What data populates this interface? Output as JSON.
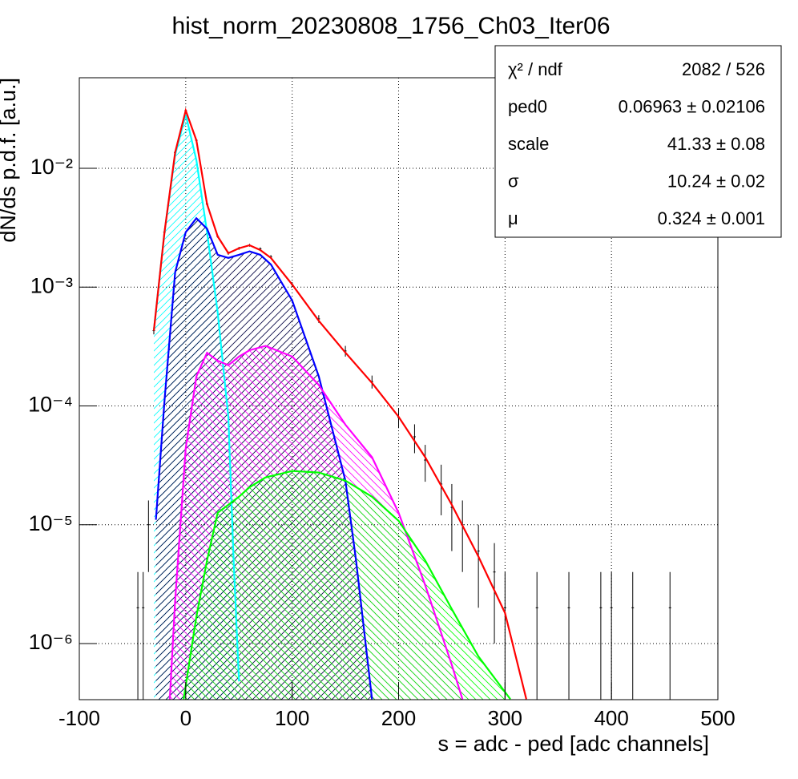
{
  "chart_data": {
    "type": "line",
    "title": "hist_norm_20230808_1756_Ch03_Iter06",
    "x_label": "s = adc - ped [adc channels]",
    "y_label": "dN/ds p.d.f. [a.u.]",
    "log_y": true,
    "grid": true,
    "xlim": [
      -100,
      500
    ],
    "xticks": [
      -100,
      0,
      100,
      200,
      300,
      400,
      500
    ],
    "ylim": [
      3.37e-07,
      0.0578
    ],
    "yticks": [
      {
        "value": 1e-06,
        "label": "10⁻⁶"
      },
      {
        "value": 1e-05,
        "label": "10⁻⁵"
      },
      {
        "value": 0.0001,
        "label": "10⁻⁴"
      },
      {
        "value": 0.001,
        "label": "10⁻³"
      },
      {
        "value": 0.01,
        "label": "10⁻²"
      }
    ],
    "histogram": {
      "color": "#000000",
      "x": [
        -45,
        -40,
        -35,
        -30,
        -20,
        -10,
        0,
        10,
        20,
        30,
        40,
        50,
        60,
        70,
        80,
        100,
        125,
        150,
        175,
        200,
        215,
        225,
        240,
        250,
        260,
        275,
        290,
        300,
        330,
        360,
        390,
        400,
        420,
        455
      ],
      "values": [
        2e-06,
        2e-06,
        1e-05,
        0.00043,
        0.0029,
        0.0136,
        0.0306,
        0.0172,
        0.005,
        0.00267,
        0.00193,
        0.00212,
        0.00225,
        0.0021,
        0.0018,
        0.00105,
        0.00054,
        0.00029,
        0.00016,
        8e-05,
        5.5e-05,
        3.5e-05,
        2.2e-05,
        1.4e-05,
        1e-05,
        6e-06,
        4e-06,
        2e-06,
        2e-06,
        2e-06,
        2e-06,
        2e-06,
        2e-06,
        2e-06
      ],
      "errors": [
        2e-06,
        2e-06,
        6e-06,
        3e-05,
        8e-05,
        0.0002,
        0.0003,
        0.0002,
        0.0001,
        7e-05,
        6e-05,
        6e-05,
        6e-05,
        6e-05,
        6e-05,
        5e-05,
        4e-05,
        3e-05,
        2e-05,
        1.5e-05,
        1.5e-05,
        1.2e-05,
        1e-05,
        8e-06,
        6e-06,
        4e-06,
        3e-06,
        2e-06,
        2e-06,
        2e-06,
        2e-06,
        2e-06,
        2e-06,
        2e-06
      ]
    },
    "series": [
      {
        "color": "#00ffff",
        "hatch": "fwd",
        "x": [
          -30,
          -20,
          -10,
          0,
          10,
          20,
          30,
          40,
          45,
          50
        ],
        "values": [
          0.00043,
          0.0029,
          0.013,
          0.0283,
          0.0117,
          0.0029,
          0.00061,
          8.1e-05,
          5e-06,
          4.8e-07
        ]
      },
      {
        "color": "#0000ff",
        "hatch": "fwd",
        "x": [
          -28,
          -20,
          -10,
          0,
          10,
          20,
          30,
          40,
          50,
          60,
          70,
          80,
          100,
          125,
          150,
          160,
          175
        ],
        "values": [
          1.1e-05,
          0.00011,
          0.00133,
          0.0029,
          0.0038,
          0.0031,
          0.00187,
          0.00176,
          0.00187,
          0.002,
          0.00187,
          0.00155,
          0.00077,
          0.000177,
          2.35e-05,
          5e-06,
          3.4e-07
        ]
      },
      {
        "color": "#ff00ff",
        "hatch": "back",
        "x": [
          -15,
          -10,
          0,
          10,
          20,
          30,
          40,
          50,
          60,
          75,
          100,
          125,
          150,
          175,
          200,
          225,
          250,
          260
        ],
        "values": [
          3.4e-07,
          2.3e-06,
          4.4e-05,
          0.000177,
          0.00028,
          0.00024,
          0.00022,
          0.00026,
          0.000294,
          0.00032,
          0.00026,
          0.00015,
          6.95e-05,
          3.7e-05,
          1.26e-05,
          3.1e-06,
          6.6e-07,
          3.4e-07
        ]
      },
      {
        "color": "#00ff00",
        "hatch": "back",
        "x": [
          -2,
          10,
          20,
          30,
          40,
          50,
          60,
          75,
          100,
          125,
          150,
          175,
          200,
          225,
          250,
          275,
          305
        ],
        "values": [
          3.4e-07,
          1.68e-06,
          5e-06,
          1.26e-05,
          1.47e-05,
          1.72e-05,
          2.07e-05,
          2.5e-05,
          2.83e-05,
          2.75e-05,
          2.35e-05,
          1.72e-05,
          1.08e-05,
          5e-06,
          1.95e-06,
          7.8e-07,
          3.4e-07
        ]
      },
      {
        "color": "#ff0000",
        "x": [
          -30,
          -20,
          -10,
          0,
          10,
          20,
          30,
          40,
          50,
          60,
          70,
          80,
          100,
          125,
          150,
          175,
          200,
          225,
          250,
          275,
          300,
          320
        ],
        "values": [
          0.00043,
          0.0029,
          0.0136,
          0.0306,
          0.0172,
          0.005,
          0.00267,
          0.00193,
          0.00212,
          0.00225,
          0.00205,
          0.00176,
          0.00105,
          0.00052,
          0.000281,
          0.000156,
          8.1e-05,
          3.7e-05,
          1.47e-05,
          5.4e-06,
          1.81e-06,
          3.4e-07
        ]
      }
    ],
    "stats": [
      {
        "label": "χ² / ndf",
        "value": "2082 / 526"
      },
      {
        "label": "ped0",
        "value": "0.06963 ± 0.02106"
      },
      {
        "label": "scale",
        "value": "41.33 ± 0.08"
      },
      {
        "label": "σ",
        "value": "10.24 ± 0.02"
      },
      {
        "label": "μ",
        "value": "0.324 ± 0.001"
      }
    ]
  }
}
